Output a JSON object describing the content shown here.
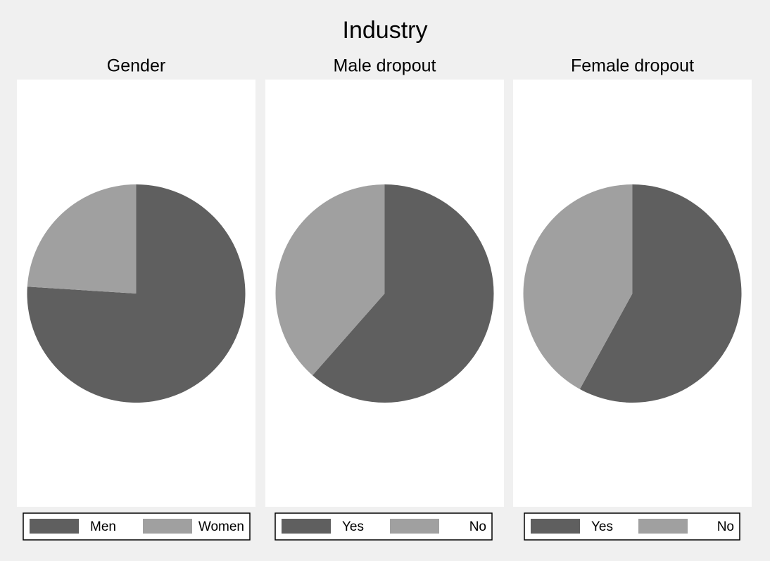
{
  "title": "Industry",
  "chart_data": [
    {
      "type": "pie",
      "title": "Gender",
      "categories": [
        "Men",
        "Women"
      ],
      "values": [
        76,
        24
      ],
      "colors": [
        "#5f5f5f",
        "#a0a0a0"
      ]
    },
    {
      "type": "pie",
      "title": "Male dropout",
      "categories": [
        "Yes",
        "No"
      ],
      "values": [
        61.5,
        38.5
      ],
      "colors": [
        "#5f5f5f",
        "#a0a0a0"
      ]
    },
    {
      "type": "pie",
      "title": "Female dropout",
      "categories": [
        "Yes",
        "No"
      ],
      "values": [
        58,
        42
      ],
      "colors": [
        "#5f5f5f",
        "#a0a0a0"
      ]
    }
  ]
}
